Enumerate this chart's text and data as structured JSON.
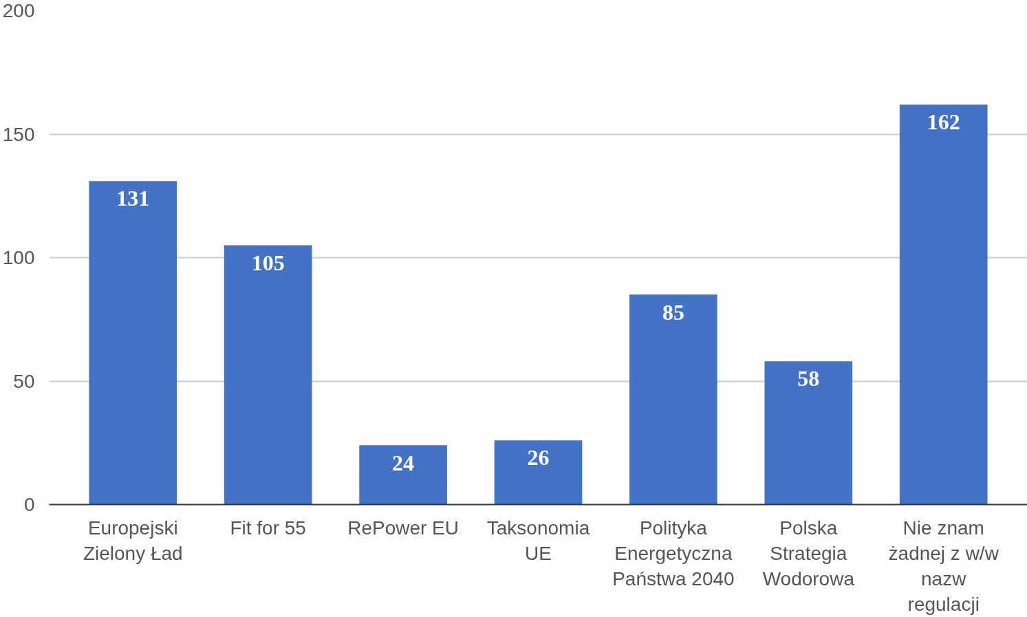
{
  "chart_data": {
    "type": "bar",
    "categories": [
      "Europejski Zielony Ład",
      "Fit for 55",
      "RePower EU",
      "Taksonomia UE",
      "Polityka Energetyczna Państwa 2040",
      "Polska Strategia Wodorowa",
      "Nie znam żadnej z w/w nazw regulacji"
    ],
    "values": [
      131,
      105,
      24,
      26,
      85,
      58,
      162
    ],
    "color": "#4472c4",
    "ylim": [
      0,
      200
    ],
    "yticks": [
      0,
      50,
      100,
      150,
      200
    ],
    "grid": "y",
    "data_labels": true
  }
}
